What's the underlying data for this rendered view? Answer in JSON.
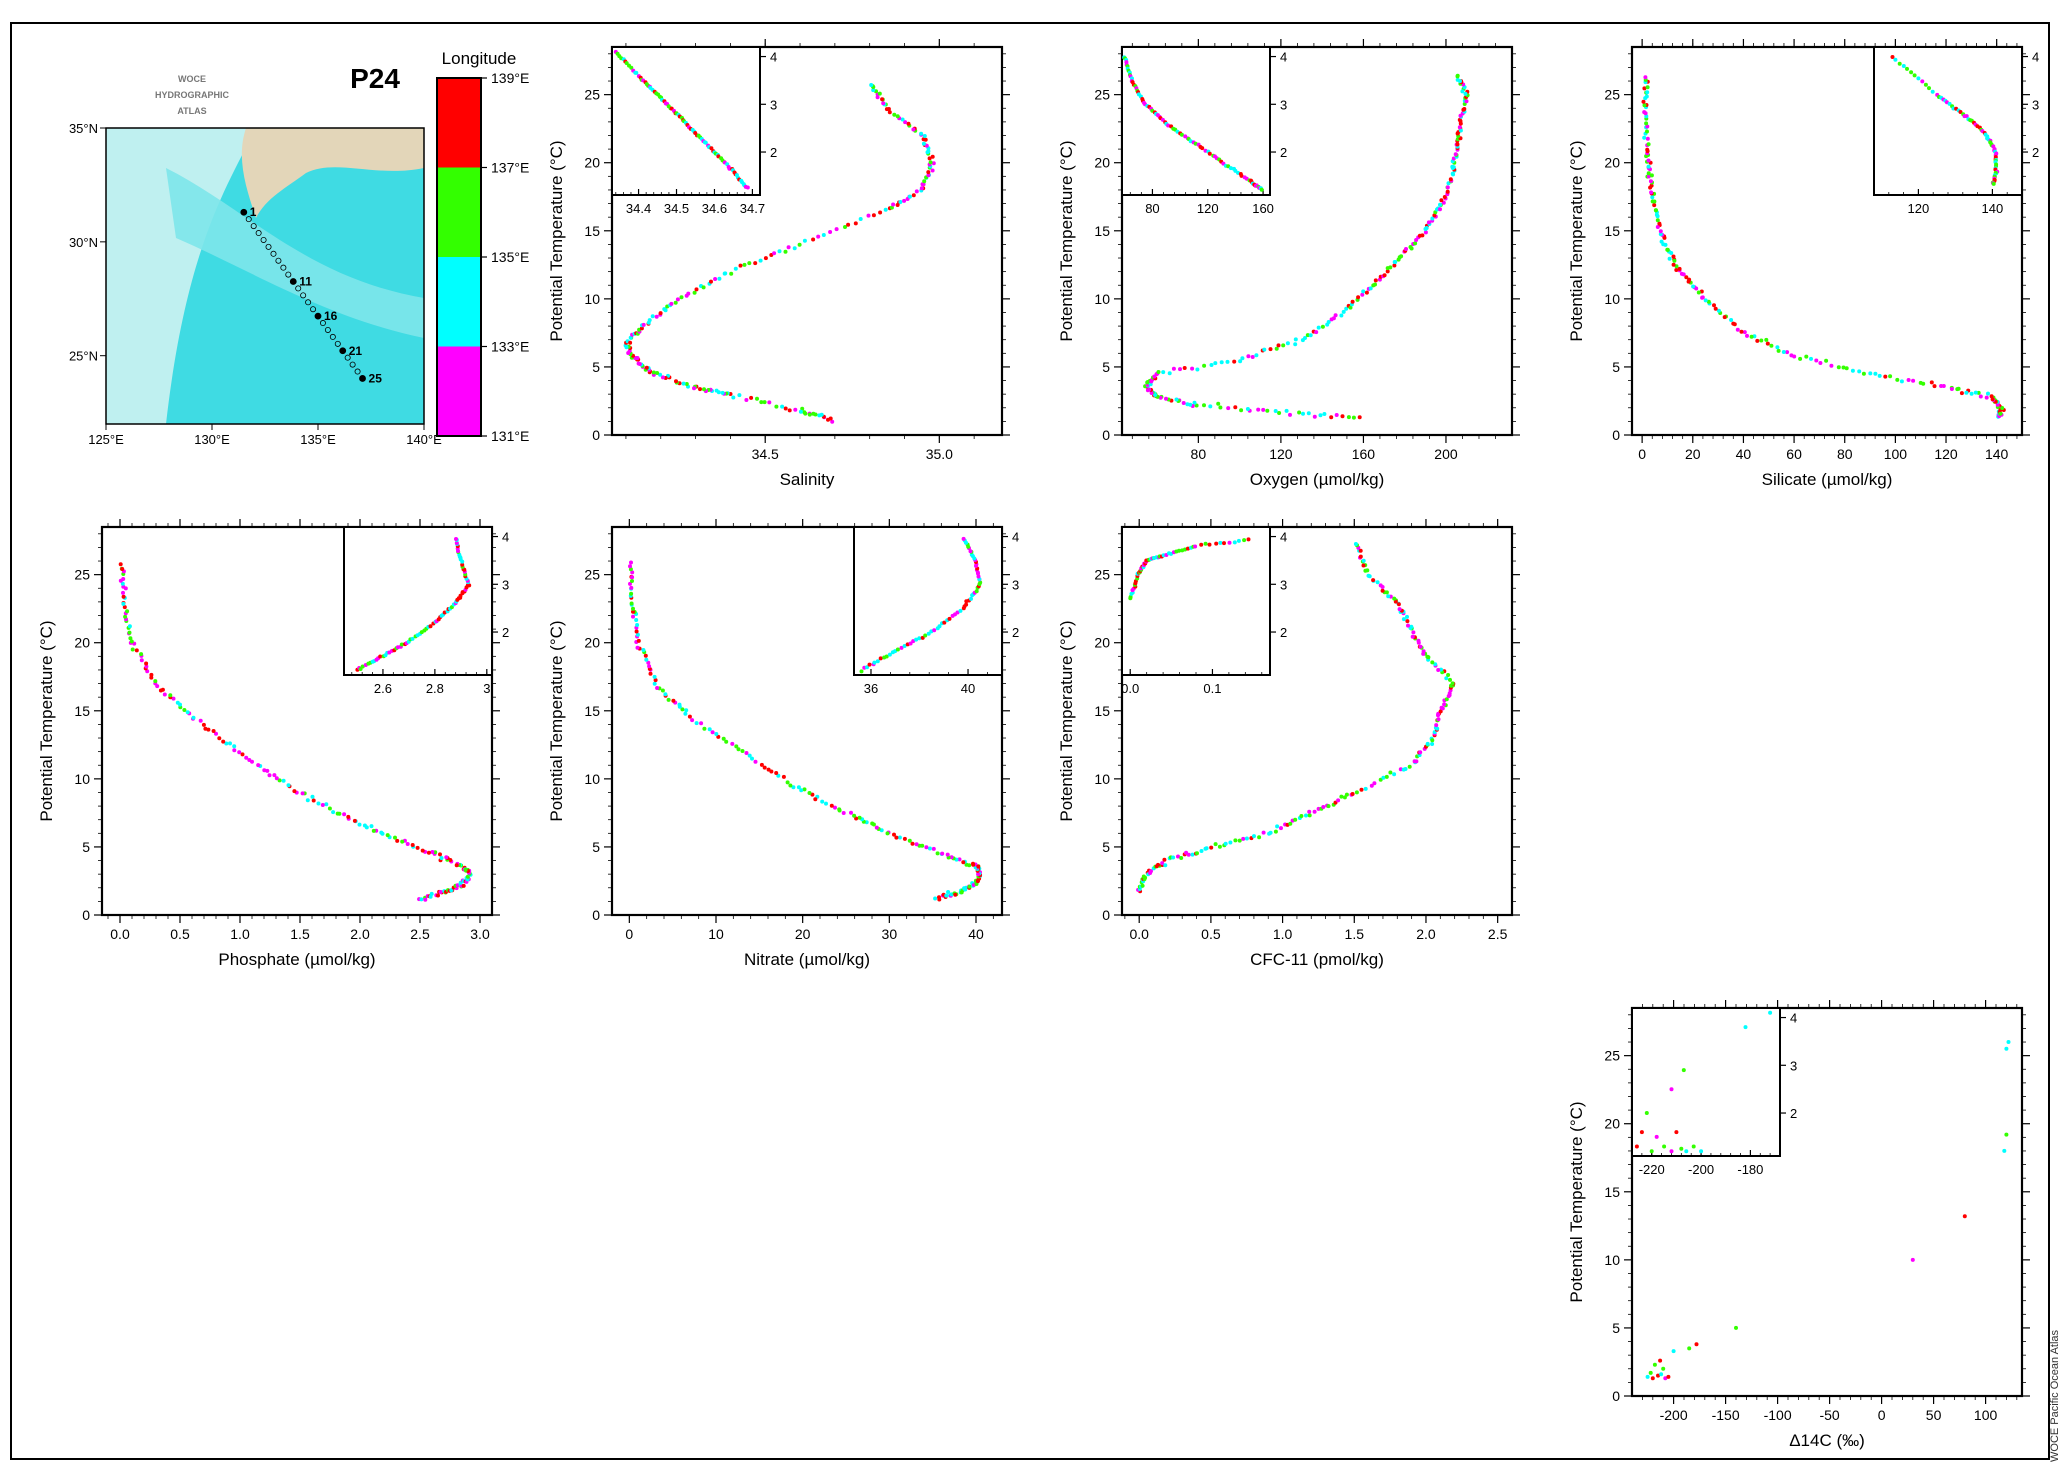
{
  "page": {
    "section_id": "P24",
    "atlas_label_lines": [
      "WOCE",
      "HYDROGRAPHIC",
      "ATLAS"
    ],
    "credit": "WOCE Pacific Ocean Atlas"
  },
  "colors": {
    "139E": "#ff0000",
    "137E": "#33ff00",
    "135E": "#00ffff",
    "133E": "#ff00ff",
    "land": "#e3d6b9",
    "sea_shallow": "#bff0f0",
    "sea_mid": "#7de6ea",
    "sea_deep": "#3fdbe3"
  },
  "colorbar": {
    "title": "Longitude",
    "ticks": [
      "139°E",
      "137°E",
      "135°E",
      "133°E",
      "131°E"
    ],
    "band_colors": [
      "#ff0000",
      "#33ff00",
      "#00ffff",
      "#ff00ff"
    ]
  },
  "map": {
    "lon_ticks": [
      "125°E",
      "130°E",
      "135°E",
      "140°E"
    ],
    "lat_ticks": [
      "35°N",
      "30°N",
      "25°N"
    ],
    "station_labels": [
      "1",
      "11",
      "16",
      "21",
      "25"
    ]
  },
  "chart_data": [
    {
      "id": "salinity",
      "type": "scatter",
      "xlabel": "Salinity",
      "ylabel": "Potential Temperature (°C)",
      "xlim": [
        34.06,
        35.18
      ],
      "ylim": [
        0,
        28.5
      ],
      "xticks": [
        "34.5",
        "35.0"
      ],
      "yticks": [
        "0",
        "5",
        "10",
        "15",
        "20",
        "25"
      ],
      "profile": [
        [
          34.69,
          1.2
        ],
        [
          34.6,
          1.8
        ],
        [
          34.4,
          3.0
        ],
        [
          34.3,
          3.5
        ],
        [
          34.18,
          4.5
        ],
        [
          34.13,
          5.5
        ],
        [
          34.1,
          6.6
        ],
        [
          34.15,
          8.0
        ],
        [
          34.25,
          10.0
        ],
        [
          34.4,
          12.0
        ],
        [
          34.6,
          14.0
        ],
        [
          34.85,
          16.5
        ],
        [
          34.95,
          18.0
        ],
        [
          34.98,
          20.0
        ],
        [
          34.95,
          22.0
        ],
        [
          34.85,
          24.0
        ],
        [
          34.8,
          26.0
        ]
      ],
      "inset": {
        "xlim": [
          34.33,
          34.72
        ],
        "ylim": [
          1.1,
          4.2
        ],
        "xticks": [
          "34.4",
          "34.5",
          "34.6",
          "34.7"
        ],
        "yticks": [
          "2",
          "3",
          "4"
        ],
        "profile": [
          [
            34.34,
            4.1
          ],
          [
            34.4,
            3.6
          ],
          [
            34.45,
            3.2
          ],
          [
            34.5,
            2.8
          ],
          [
            34.55,
            2.4
          ],
          [
            34.6,
            2.0
          ],
          [
            34.65,
            1.6
          ],
          [
            34.69,
            1.2
          ]
        ]
      }
    },
    {
      "id": "oxygen",
      "type": "scatter",
      "xlabel": "Oxygen (µmol/kg)",
      "ylabel": "Potential Temperature (°C)",
      "xlim": [
        43,
        232
      ],
      "ylim": [
        0,
        28.5
      ],
      "xticks": [
        "80",
        "120",
        "160",
        "200"
      ],
      "yticks": [
        "0",
        "5",
        "10",
        "15",
        "20",
        "25"
      ],
      "profile": [
        [
          158,
          1.2
        ],
        [
          120,
          1.7
        ],
        [
          80,
          2.2
        ],
        [
          60,
          2.8
        ],
        [
          55,
          3.5
        ],
        [
          60,
          4.5
        ],
        [
          100,
          5.5
        ],
        [
          130,
          7.0
        ],
        [
          150,
          9.0
        ],
        [
          165,
          11.0
        ],
        [
          178,
          13.0
        ],
        [
          190,
          15.0
        ],
        [
          198,
          17.0
        ],
        [
          203,
          19.0
        ],
        [
          205,
          21.0
        ],
        [
          207,
          23.0
        ],
        [
          210,
          25.0
        ],
        [
          205,
          26.5
        ]
      ],
      "inset": {
        "xlim": [
          58,
          165
        ],
        "ylim": [
          1.1,
          4.2
        ],
        "xticks": [
          "80",
          "120",
          "160"
        ],
        "yticks": [
          "2",
          "3",
          "4"
        ],
        "profile": [
          [
            60,
            4.0
          ],
          [
            65,
            3.5
          ],
          [
            75,
            3.0
          ],
          [
            90,
            2.6
          ],
          [
            110,
            2.2
          ],
          [
            130,
            1.8
          ],
          [
            150,
            1.4
          ],
          [
            160,
            1.2
          ]
        ]
      }
    },
    {
      "id": "silicate",
      "type": "scatter",
      "xlabel": "Silicate (µmol/kg)",
      "ylabel": "Potential Temperature (°C)",
      "xlim": [
        -4,
        150
      ],
      "ylim": [
        0,
        28.5
      ],
      "xticks": [
        "0",
        "20",
        "40",
        "60",
        "80",
        "100",
        "120",
        "140"
      ],
      "yticks": [
        "0",
        "5",
        "10",
        "15",
        "20",
        "25"
      ],
      "profile": [
        [
          141,
          1.3
        ],
        [
          142,
          2.0
        ],
        [
          138,
          2.8
        ],
        [
          120,
          3.5
        ],
        [
          90,
          4.5
        ],
        [
          60,
          5.8
        ],
        [
          40,
          7.5
        ],
        [
          25,
          10.0
        ],
        [
          15,
          12.0
        ],
        [
          9,
          14.0
        ],
        [
          5,
          16.5
        ],
        [
          3,
          19.0
        ],
        [
          2,
          21.0
        ],
        [
          1.5,
          24.0
        ],
        [
          1,
          26.5
        ]
      ],
      "inset": {
        "xlim": [
          108,
          148
        ],
        "ylim": [
          1.1,
          4.2
        ],
        "xticks": [
          "120",
          "140"
        ],
        "yticks": [
          "2",
          "3",
          "4"
        ],
        "profile": [
          [
            113,
            4.0
          ],
          [
            125,
            3.2
          ],
          [
            132,
            2.8
          ],
          [
            138,
            2.4
          ],
          [
            141,
            2.0
          ],
          [
            141,
            1.6
          ],
          [
            140,
            1.3
          ]
        ]
      }
    },
    {
      "id": "phosphate",
      "type": "scatter",
      "xlabel": "Phosphate (µmol/kg)",
      "ylabel": "Potential Temperature (°C)",
      "xlim": [
        -0.15,
        3.1
      ],
      "ylim": [
        0,
        28.5
      ],
      "xticks": [
        "0.0",
        "0.5",
        "1.0",
        "1.5",
        "2.0",
        "2.5",
        "3.0"
      ],
      "yticks": [
        "0",
        "5",
        "10",
        "15",
        "20",
        "25"
      ],
      "profile": [
        [
          2.5,
          1.2
        ],
        [
          2.7,
          1.7
        ],
        [
          2.85,
          2.2
        ],
        [
          2.92,
          3.0
        ],
        [
          2.85,
          3.6
        ],
        [
          2.6,
          4.5
        ],
        [
          2.2,
          6.0
        ],
        [
          1.8,
          7.5
        ],
        [
          1.4,
          9.5
        ],
        [
          1.0,
          12.0
        ],
        [
          0.6,
          14.5
        ],
        [
          0.3,
          17.0
        ],
        [
          0.1,
          20.0
        ],
        [
          0.03,
          23.0
        ],
        [
          0.02,
          26.0
        ]
      ],
      "inset": {
        "xlim": [
          2.45,
          3.02
        ],
        "ylim": [
          1.1,
          4.2
        ],
        "xticks": [
          "2.6",
          "2.8",
          "3"
        ],
        "yticks": [
          "2",
          "3",
          "4"
        ],
        "profile": [
          [
            2.5,
            1.2
          ],
          [
            2.6,
            1.5
          ],
          [
            2.7,
            1.8
          ],
          [
            2.8,
            2.2
          ],
          [
            2.88,
            2.6
          ],
          [
            2.93,
            3.0
          ],
          [
            2.9,
            3.5
          ],
          [
            2.88,
            4.0
          ]
        ]
      }
    },
    {
      "id": "nitrate",
      "type": "scatter",
      "xlabel": "Nitrate (µmol/kg)",
      "ylabel": "Potential Temperature (°C)",
      "xlim": [
        -2,
        43
      ],
      "ylim": [
        0,
        28.5
      ],
      "xticks": [
        "0",
        "10",
        "20",
        "30",
        "40"
      ],
      "yticks": [
        "0",
        "5",
        "10",
        "15",
        "20",
        "25"
      ],
      "profile": [
        [
          35.5,
          1.2
        ],
        [
          38,
          1.7
        ],
        [
          40,
          2.3
        ],
        [
          40.5,
          3.0
        ],
        [
          40,
          3.6
        ],
        [
          36,
          4.5
        ],
        [
          30,
          6.0
        ],
        [
          25,
          7.5
        ],
        [
          19,
          9.5
        ],
        [
          13,
          12.0
        ],
        [
          7,
          14.5
        ],
        [
          3,
          17.0
        ],
        [
          1,
          20.0
        ],
        [
          0.3,
          23.0
        ],
        [
          0.2,
          26.0
        ]
      ],
      "inset": {
        "xlim": [
          35.3,
          41.4
        ],
        "ylim": [
          1.1,
          4.2
        ],
        "xticks": [
          "36",
          "40"
        ],
        "yticks": [
          "2",
          "3",
          "4"
        ],
        "profile": [
          [
            35.6,
            1.2
          ],
          [
            37,
            1.6
          ],
          [
            38.5,
            2.0
          ],
          [
            39.8,
            2.5
          ],
          [
            40.5,
            3.0
          ],
          [
            40.3,
            3.5
          ],
          [
            39.8,
            4.0
          ]
        ]
      }
    },
    {
      "id": "cfc11",
      "type": "scatter",
      "xlabel": "CFC-11 (pmol/kg)",
      "ylabel": "Potential Temperature (°C)",
      "xlim": [
        -0.12,
        2.6
      ],
      "ylim": [
        0,
        28.5
      ],
      "xticks": [
        "0.0",
        "0.5",
        "1.0",
        "1.5",
        "2.0",
        "2.5"
      ],
      "yticks": [
        "0",
        "5",
        "10",
        "15",
        "20",
        "25"
      ],
      "profile": [
        [
          0.0,
          1.8
        ],
        [
          0.05,
          3.0
        ],
        [
          0.2,
          4.0
        ],
        [
          0.5,
          5.0
        ],
        [
          0.9,
          6.0
        ],
        [
          1.2,
          7.5
        ],
        [
          1.5,
          9.0
        ],
        [
          1.9,
          11.0
        ],
        [
          2.05,
          13.0
        ],
        [
          2.1,
          15.0
        ],
        [
          2.2,
          17.0
        ],
        [
          2.0,
          19.0
        ],
        [
          1.9,
          21.0
        ],
        [
          1.8,
          23.0
        ],
        [
          1.6,
          25.0
        ],
        [
          1.5,
          27.5
        ]
      ],
      "inset": {
        "xlim": [
          -0.01,
          0.17
        ],
        "ylim": [
          1.1,
          4.2
        ],
        "xticks": [
          "0.0",
          "0.1"
        ],
        "yticks": [
          "2",
          "3",
          "4"
        ],
        "profile": [
          [
            0.0,
            2.7
          ],
          [
            0.01,
            3.2
          ],
          [
            0.02,
            3.5
          ],
          [
            0.04,
            3.6
          ],
          [
            0.08,
            3.8
          ],
          [
            0.15,
            3.95
          ]
        ]
      }
    },
    {
      "id": "c14",
      "type": "scatter",
      "xlabel": "Δ14C (‰)",
      "ylabel": "Potential Temperature (°C)",
      "xlim": [
        -240,
        135
      ],
      "ylim": [
        0,
        28.5
      ],
      "xticks": [
        "-200",
        "-150",
        "-100",
        "-50",
        "0",
        "50",
        "100"
      ],
      "yticks": [
        "0",
        "5",
        "10",
        "15",
        "20",
        "25"
      ],
      "points": [
        [
          -225,
          1.4
        ],
        [
          -222,
          1.7
        ],
        [
          -220,
          1.3
        ],
        [
          -215,
          1.5
        ],
        [
          -212,
          1.6
        ],
        [
          -208,
          1.3
        ],
        [
          -205,
          1.4
        ],
        [
          -210,
          2.0
        ],
        [
          -218,
          2.3
        ],
        [
          -213,
          2.6
        ],
        [
          -200,
          3.3
        ],
        [
          -185,
          3.5
        ],
        [
          -178,
          3.8
        ],
        [
          -140,
          5.0
        ],
        [
          30,
          10.0
        ],
        [
          80,
          13.2
        ],
        [
          118,
          18.0
        ],
        [
          120,
          19.2
        ],
        [
          120,
          25.5
        ],
        [
          122,
          26.0
        ]
      ],
      "inset": {
        "xlim": [
          -228,
          -168
        ],
        "ylim": [
          1.1,
          4.2
        ],
        "xticks": [
          "-220",
          "-200",
          "-180"
        ],
        "yticks": [
          "2",
          "3",
          "4"
        ],
        "points": [
          [
            -226,
            1.3
          ],
          [
            -224,
            1.6
          ],
          [
            -222,
            2.0
          ],
          [
            -220,
            1.2
          ],
          [
            -218,
            1.5
          ],
          [
            -215,
            1.3
          ],
          [
            -212,
            1.2
          ],
          [
            -210,
            1.6
          ],
          [
            -208,
            1.25
          ],
          [
            -206,
            1.2
          ],
          [
            -203,
            1.3
          ],
          [
            -200,
            1.2
          ],
          [
            -212,
            2.5
          ],
          [
            -207,
            2.9
          ],
          [
            -182,
            3.8
          ],
          [
            -172,
            4.1
          ]
        ]
      }
    }
  ]
}
